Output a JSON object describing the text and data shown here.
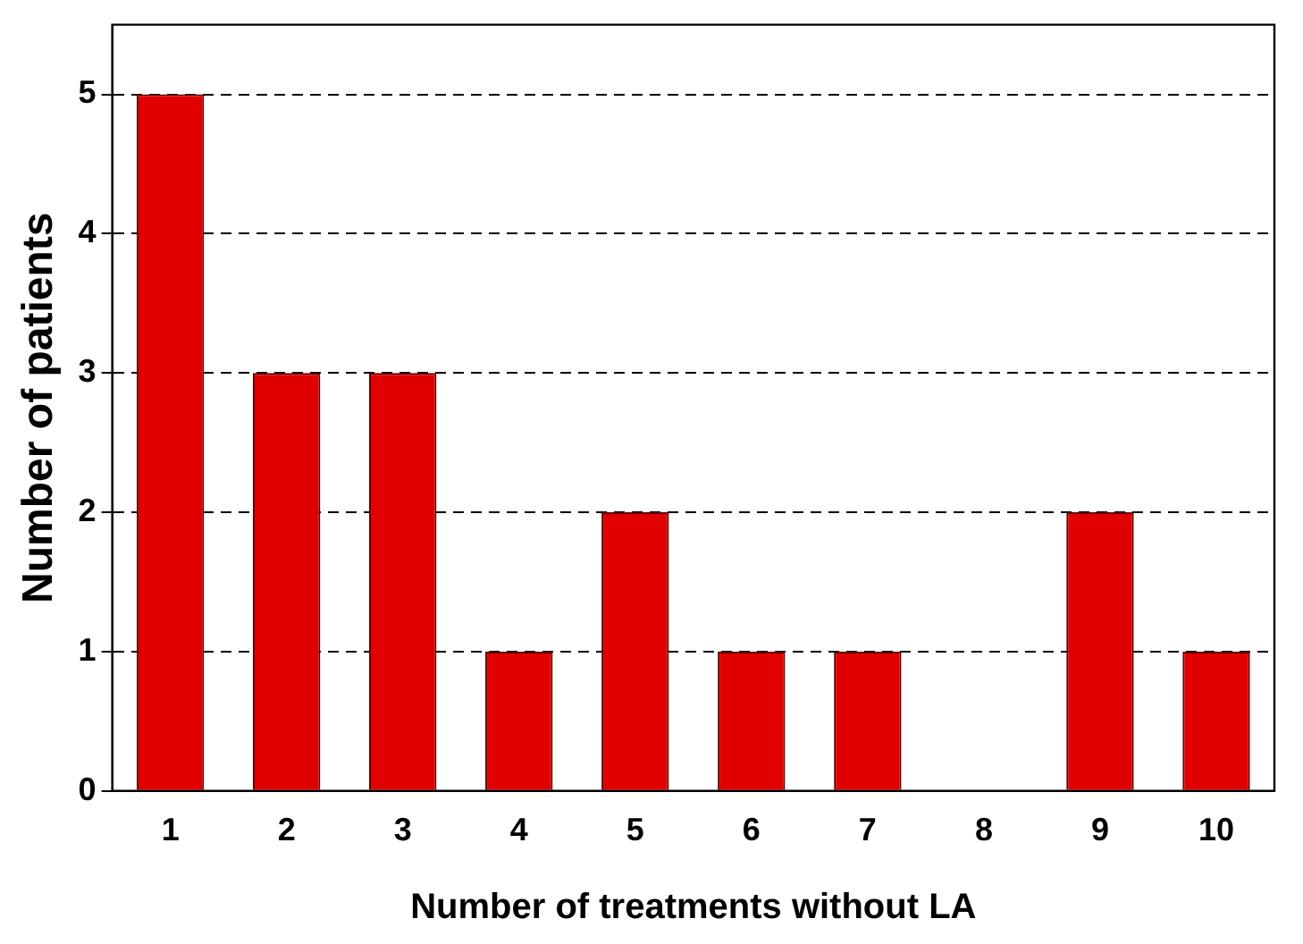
{
  "chart_data": {
    "type": "bar",
    "xlabel": "Number of treatments without LA",
    "ylabel": "Number of patients",
    "categories": [
      "1",
      "2",
      "3",
      "4",
      "5",
      "6",
      "7",
      "8",
      "9",
      "10"
    ],
    "values": [
      5,
      3,
      3,
      1,
      2,
      1,
      1,
      0,
      2,
      1
    ],
    "color": "#e00000",
    "ylim": [
      0,
      5.5
    ],
    "yticks": [
      0,
      1,
      2,
      3,
      4,
      5
    ],
    "grid": "y"
  }
}
